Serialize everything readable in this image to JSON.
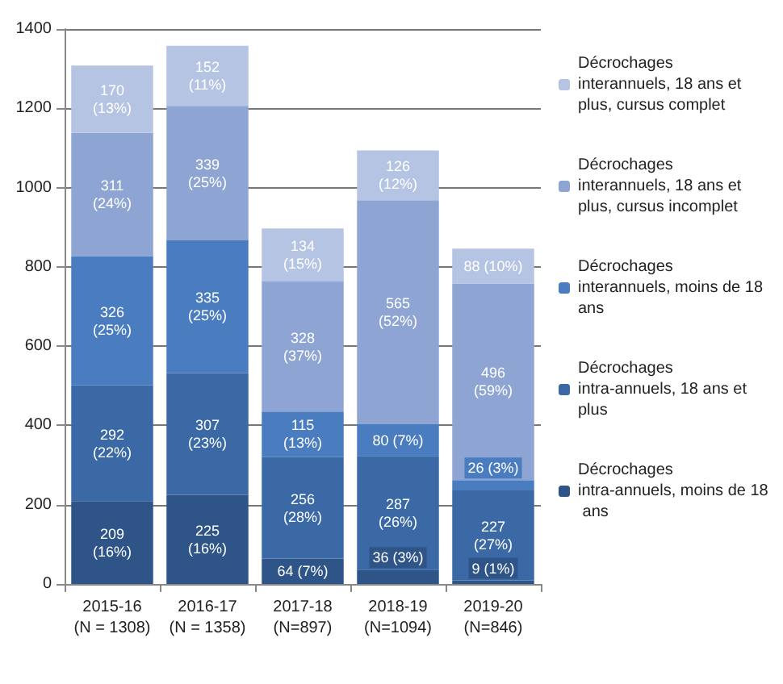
{
  "chart_data": {
    "type": "bar",
    "stacked": true,
    "categories": [
      "2015-16 (N = 1308)",
      "2016-17 (N = 1358)",
      "2017-18 (N=897)",
      "2018-19 (N=1094)",
      "2019-20 (N=846)"
    ],
    "series": [
      {
        "name": "Décrochages intra-annuels, moins de 18 ans",
        "color": "#2e5488",
        "values": [
          209,
          225,
          64,
          36,
          9
        ],
        "value_labels": [
          "209 (16%)",
          "225 (16%)",
          "64 (7%)",
          "36 (3%)",
          "9 (1%)"
        ]
      },
      {
        "name": "Décrochages intra-annuels, 18 ans et plus",
        "color": "#3a69a6",
        "values": [
          292,
          307,
          256,
          287,
          227
        ],
        "value_labels": [
          "292 (22%)",
          "307 (23%)",
          "256 (28%)",
          "287 (26%)",
          "227 (27%)"
        ]
      },
      {
        "name": "Décrochages interannuels, moins de 18 ans",
        "color": "#4a7cc0",
        "values": [
          326,
          335,
          115,
          80,
          26
        ],
        "value_labels": [
          "326 (25%)",
          "335 (25%)",
          "115 (13%)",
          "80 (7%)",
          "26 (3%)"
        ]
      },
      {
        "name": "Décrochages interannuels, 18 ans et plus, cursus incomplet",
        "color": "#8ea5d3",
        "values": [
          311,
          339,
          328,
          565,
          496
        ],
        "value_labels": [
          "311 (24%)",
          "339 (25%)",
          "328 (37%)",
          "565 (52%)",
          "496 (59%)"
        ]
      },
      {
        "name": "Décrochages interannuels, 18 ans et plus, cursus complet",
        "color": "#b5c4e3",
        "values": [
          170,
          152,
          134,
          126,
          88
        ],
        "value_labels": [
          "170 (13%)",
          "152 (11%)",
          "134 (15%)",
          "126 (12%)",
          "88 (10%)"
        ]
      }
    ],
    "ylim": [
      0,
      1400
    ],
    "yticks": [
      0,
      200,
      400,
      600,
      800,
      1000,
      1200,
      1400
    ],
    "grid": "y",
    "legend": "right"
  }
}
